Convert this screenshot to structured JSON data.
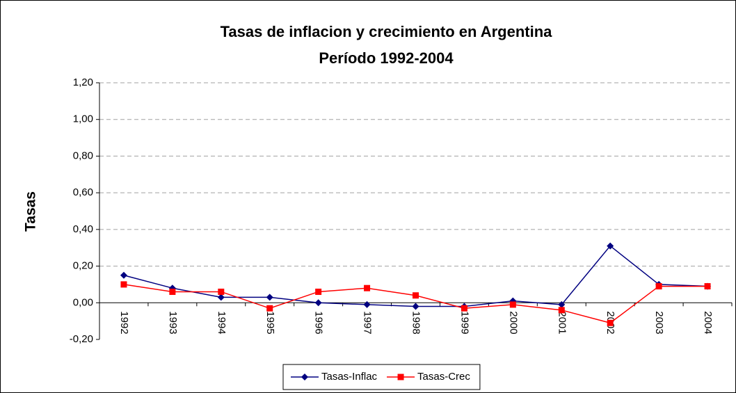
{
  "chart_data": {
    "type": "line",
    "title": "Tasas de inflacion y crecimiento en Argentina",
    "subtitle": "Período 1992-2004",
    "y_label": "Tasas",
    "categories": [
      "1992",
      "1993",
      "1994",
      "1995",
      "1996",
      "1997",
      "1998",
      "1999",
      "2000",
      "2001",
      "2002",
      "2003",
      "2004"
    ],
    "series": [
      {
        "name": "Tasas-Inflac",
        "color": "#000080",
        "marker": "diamond",
        "values": [
          0.15,
          0.08,
          0.03,
          0.03,
          0.0,
          -0.01,
          -0.02,
          -0.02,
          0.01,
          -0.01,
          0.31,
          0.1,
          0.09
        ]
      },
      {
        "name": "Tasas-Crec",
        "color": "#ff0000",
        "marker": "square",
        "values": [
          0.1,
          0.06,
          0.06,
          -0.03,
          0.06,
          0.08,
          0.04,
          -0.03,
          -0.01,
          -0.04,
          -0.11,
          0.09,
          0.09
        ]
      }
    ],
    "ylim": [
      -0.2,
      1.2
    ],
    "yticks": [
      {
        "value": -0.2,
        "label": "-0,20"
      },
      {
        "value": 0,
        "label": "0,00"
      },
      {
        "value": 0.2,
        "label": "0,20"
      },
      {
        "value": 0.4,
        "label": "0,40"
      },
      {
        "value": 0.6,
        "label": "0,60"
      },
      {
        "value": 0.8,
        "label": "0,80"
      },
      {
        "value": 1.0,
        "label": "1,00"
      },
      {
        "value": 1.2,
        "label": "1,20"
      }
    ],
    "grid": true,
    "legend": "bottom"
  }
}
